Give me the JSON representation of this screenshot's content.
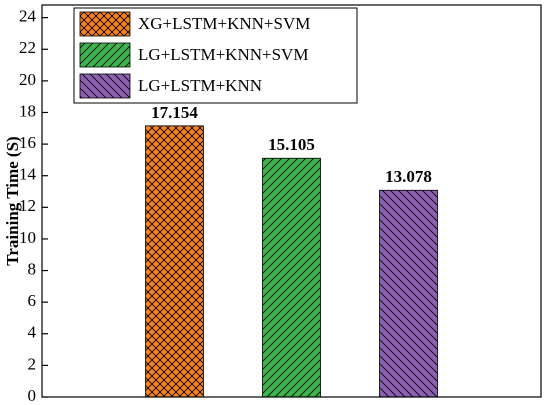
{
  "chart_data": {
    "type": "bar",
    "y_label": "Training Time (S)",
    "categories": [
      null
    ],
    "series": [
      {
        "name": "XG+LSTM+KNN+SVM",
        "color": "#f5821f",
        "hatch": "cross",
        "values": [
          17.154
        ]
      },
      {
        "name": "LG+LSTM+KNN+SVM",
        "color": "#3cb44b",
        "hatch": "forward",
        "values": [
          15.105
        ]
      },
      {
        "name": "LG+LSTM+KNN",
        "color": "#8c5fb0",
        "hatch": "backward",
        "values": [
          13.078
        ]
      }
    ],
    "ylim": [
      0,
      24.8
    ],
    "yticks": [
      0,
      2,
      4,
      6,
      8,
      10,
      12,
      14,
      16,
      18,
      20,
      22,
      24
    ],
    "legend": "upper-left",
    "value_labels_shown": true
  }
}
